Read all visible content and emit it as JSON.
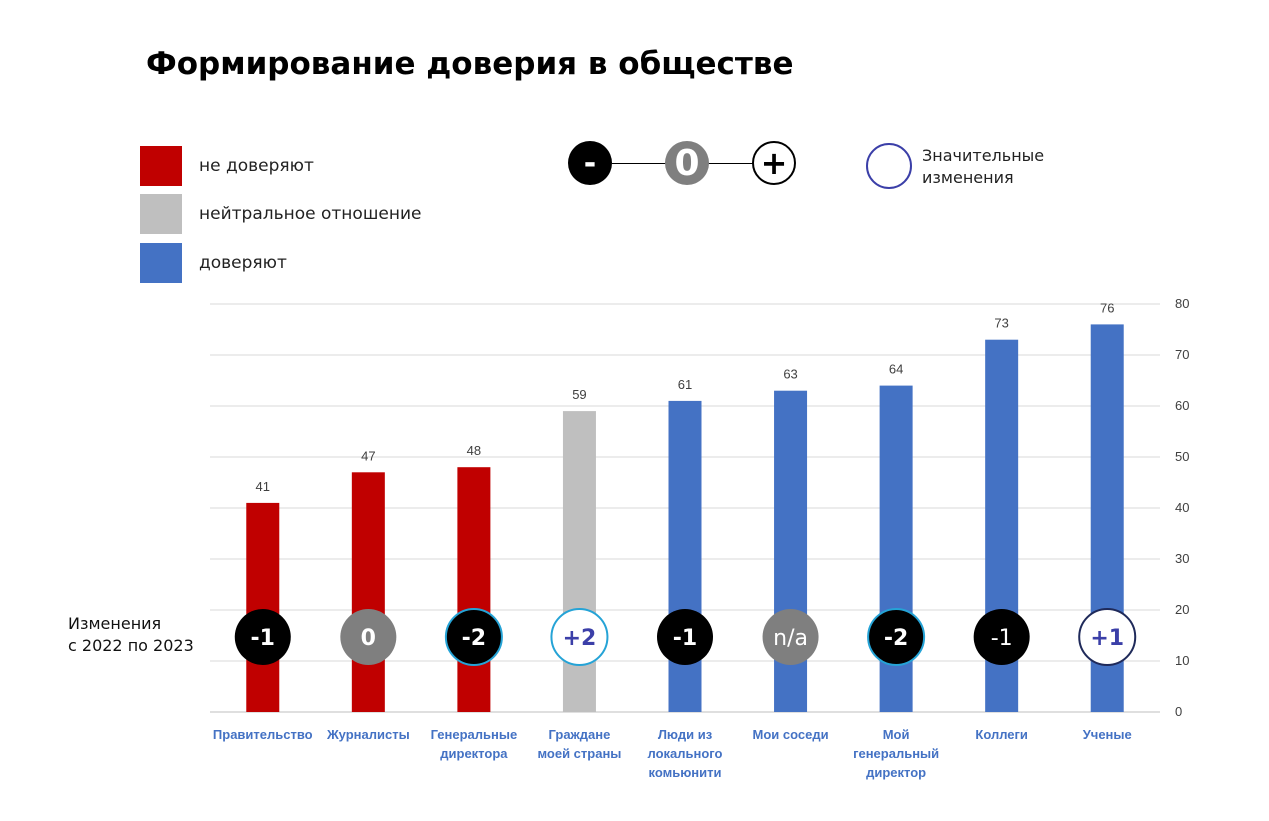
{
  "title": "Формирование доверия в обществе",
  "legend": [
    {
      "label": "не доверяют",
      "color": "#c00000"
    },
    {
      "label": "нейтральное отношение",
      "color": "#bfbfbf"
    },
    {
      "label": "доверяют",
      "color": "#4472c4"
    }
  ],
  "change_scale": {
    "minus": "-",
    "zero": "0",
    "plus": "+"
  },
  "significant_label": "Значительные изменения",
  "changes_label_line1": "Изменения",
  "changes_label_line2": "с 2022 по 2023",
  "chart_data": {
    "type": "bar",
    "title": "Формирование доверия в обществе",
    "categories": [
      "Правительство",
      "Журналисты",
      "Генеральные директора",
      "Граждане моей страны",
      "Люди из локального комьюнити",
      "Мои соседи",
      "Мой генеральный директор",
      "Коллеги",
      "Ученые"
    ],
    "values": [
      41,
      47,
      48,
      59,
      61,
      63,
      64,
      73,
      76
    ],
    "bar_colors": [
      "#c00000",
      "#c00000",
      "#c00000",
      "#bfbfbf",
      "#4472c4",
      "#4472c4",
      "#4472c4",
      "#4472c4",
      "#4472c4"
    ],
    "ylim": [
      0,
      80
    ],
    "yticks": [
      0,
      10,
      20,
      30,
      40,
      50,
      60,
      70,
      80
    ],
    "y_axis_side": "right",
    "grid": true,
    "changes": [
      "-1",
      "0",
      "-2",
      "+2",
      "-1",
      "n/a",
      "-2",
      "-1",
      "+1"
    ],
    "change_significant": [
      false,
      false,
      true,
      true,
      false,
      false,
      true,
      false,
      true
    ],
    "change_style": [
      "dark",
      "gray",
      "dark",
      "light",
      "dark",
      "gray",
      "dark",
      "dark",
      "light"
    ]
  }
}
